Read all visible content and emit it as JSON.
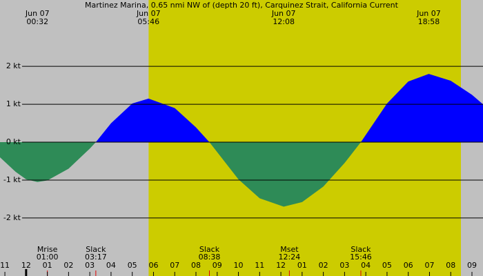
{
  "chart_data": {
    "type": "area",
    "title": "Martinez Marina, 0.65 nmi NW of (depth 20 ft), Carquinez Strait, California Current",
    "x": [
      -1.23,
      -0.5,
      0,
      0.533,
      1,
      2,
      3,
      3.283,
      4,
      5,
      5.767,
      7,
      8,
      8.633,
      10,
      11,
      12.133,
      13,
      14,
      15,
      15.767,
      17,
      18,
      18.967,
      20,
      21,
      21.52
    ],
    "values": [
      -0.4,
      -0.78,
      -0.98,
      -1.05,
      -1.01,
      -0.7,
      -0.17,
      0,
      0.5,
      1.02,
      1.15,
      0.9,
      0.39,
      0,
      -0.98,
      -1.48,
      -1.7,
      -1.58,
      -1.17,
      -0.55,
      0,
      1.02,
      1.6,
      1.8,
      1.62,
      1.25,
      1.0
    ],
    "flood_color": "#0000ff",
    "ebb_color": "#2e8b57",
    "night_color": "#c0c0c0",
    "day_color": "#cccc00",
    "daylight": [
      5.77,
      20.48
    ],
    "xlim": [
      -1.23,
      21.52
    ],
    "xticks": [
      {
        "value": -1,
        "label": "11"
      },
      {
        "value": 0,
        "label": "12"
      },
      {
        "value": 1,
        "label": "01"
      },
      {
        "value": 2,
        "label": "02"
      },
      {
        "value": 3,
        "label": "03"
      },
      {
        "value": 4,
        "label": "04"
      },
      {
        "value": 5,
        "label": "05"
      },
      {
        "value": 6,
        "label": "06"
      },
      {
        "value": 7,
        "label": "07"
      },
      {
        "value": 8,
        "label": "08"
      },
      {
        "value": 9,
        "label": "09"
      },
      {
        "value": 10,
        "label": "10"
      },
      {
        "value": 11,
        "label": "11"
      },
      {
        "value": 12,
        "label": "12"
      },
      {
        "value": 13,
        "label": "01"
      },
      {
        "value": 14,
        "label": "02"
      },
      {
        "value": 15,
        "label": "03"
      },
      {
        "value": 16,
        "label": "04"
      },
      {
        "value": 17,
        "label": "05"
      },
      {
        "value": 18,
        "label": "06"
      },
      {
        "value": 19,
        "label": "07"
      },
      {
        "value": 20,
        "label": "08"
      },
      {
        "value": 21,
        "label": "09"
      }
    ],
    "ylim": [
      -3.53,
      3.75
    ],
    "yticks": [
      {
        "value": 2,
        "label": "2 kt"
      },
      {
        "value": 1,
        "label": "1 kt"
      },
      {
        "value": 0,
        "label": "0 kt"
      },
      {
        "value": -1,
        "label": "-1 kt"
      },
      {
        "value": -2,
        "label": "-2 kt"
      }
    ],
    "grid": true,
    "extremes": [
      {
        "date": "Jun 07",
        "time": "00:32"
      },
      {
        "date": "Jun 07",
        "time": "05:46"
      },
      {
        "date": "Jun 07",
        "time": "12:08"
      },
      {
        "date": "Jun 07",
        "time": "18:58"
      }
    ],
    "events": [
      {
        "name": "Mrise",
        "time": "01:00"
      },
      {
        "name": "Slack",
        "time": "03:17"
      },
      {
        "name": "Slack",
        "time": "08:38"
      },
      {
        "name": "Mset",
        "time": "12:24"
      },
      {
        "name": "Slack",
        "time": "15:46"
      }
    ]
  }
}
